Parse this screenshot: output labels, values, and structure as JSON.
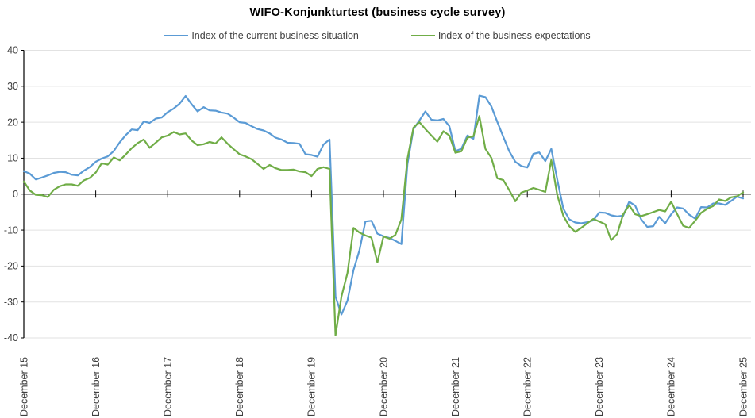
{
  "title": "WIFO-Konjunkturtest (business cycle survey)",
  "legend": {
    "current": "Index of the current business situation",
    "expectations": "Index of the business expectations"
  },
  "colors": {
    "current_line": "#5b9bd5",
    "expectations_line": "#70ad47",
    "grid": "#e2e2e2",
    "axis": "#000000",
    "tick_text": "#3f3f3f"
  },
  "chart_data": {
    "type": "line",
    "title": "WIFO-Konjunkturtest (business cycle survey)",
    "x_unit": "month",
    "x_start": "December 2015",
    "x_end": "December 2025",
    "x_tick_labels": [
      "December 15",
      "December 16",
      "December 17",
      "December 18",
      "December 19",
      "December 20",
      "December 21",
      "December 22",
      "December 23",
      "December 24",
      "December 25"
    ],
    "x_ticks_every_months": 12,
    "ylim": [
      -40,
      40
    ],
    "y_ticks": [
      40,
      30,
      20,
      10,
      0,
      -10,
      -20,
      -30,
      -40
    ],
    "grid": "horizontal",
    "legend_position": "top",
    "series": [
      {
        "name": "Index of the current business situation",
        "color": "#5b9bd5",
        "values": [
          6.4,
          5.7,
          4.1,
          4.6,
          5.2,
          5.9,
          6.2,
          6.1,
          5.4,
          5.2,
          6.5,
          7.5,
          9.0,
          9.9,
          10.5,
          12.0,
          14.4,
          16.4,
          18.0,
          17.8,
          20.2,
          19.8,
          21.0,
          21.3,
          22.8,
          23.8,
          25.2,
          27.3,
          25.0,
          23.0,
          24.2,
          23.3,
          23.2,
          22.7,
          22.4,
          21.3,
          20.0,
          19.8,
          18.9,
          18.1,
          17.7,
          16.9,
          15.7,
          15.2,
          14.3,
          14.2,
          14.0,
          11.1,
          10.9,
          10.4,
          13.8,
          15.2,
          -28.5,
          -33.5,
          -29.6,
          -21.1,
          -15.6,
          -7.6,
          -7.4,
          -11.0,
          -11.7,
          -12.2,
          -13.0,
          -13.9,
          8.3,
          18.1,
          20.5,
          23.0,
          20.7,
          20.5,
          20.9,
          18.9,
          12.0,
          12.6,
          16.3,
          15.4,
          27.4,
          27.0,
          24.4,
          20.1,
          15.9,
          11.9,
          9.0,
          7.8,
          7.4,
          11.2,
          11.6,
          9.2,
          12.6,
          4.1,
          -4.0,
          -7.0,
          -7.9,
          -8.1,
          -7.8,
          -7.3,
          -5.1,
          -5.2,
          -5.9,
          -6.2,
          -6.0,
          -2.1,
          -3.2,
          -7.0,
          -9.1,
          -8.9,
          -6.3,
          -8.1,
          -5.6,
          -3.7,
          -4.0,
          -5.7,
          -6.8,
          -3.6,
          -3.7,
          -2.6,
          -2.6,
          -3.0,
          -1.9,
          -0.7,
          -1.2
        ]
      },
      {
        "name": "Index of the business expectations",
        "color": "#70ad47",
        "values": [
          3.5,
          1.0,
          -0.2,
          -0.3,
          -0.8,
          1.2,
          2.2,
          2.7,
          2.7,
          2.3,
          3.8,
          4.5,
          6.0,
          8.6,
          8.2,
          10.2,
          9.4,
          11.0,
          12.8,
          14.2,
          15.2,
          12.9,
          14.3,
          15.8,
          16.3,
          17.3,
          16.6,
          16.9,
          14.9,
          13.6,
          13.9,
          14.5,
          14.1,
          15.8,
          14.0,
          12.5,
          11.1,
          10.5,
          9.7,
          8.4,
          7.0,
          8.1,
          7.2,
          6.7,
          6.7,
          6.8,
          6.3,
          6.1,
          5.0,
          7.0,
          7.5,
          7.0,
          -39.3,
          -28.5,
          -21.9,
          -9.4,
          -10.7,
          -11.5,
          -12.1,
          -19.0,
          -11.8,
          -12.4,
          -11.3,
          -7.0,
          9.8,
          18.5,
          20.0,
          18.1,
          16.3,
          14.6,
          17.5,
          16.3,
          11.5,
          11.9,
          15.7,
          16.1,
          21.7,
          12.6,
          10.1,
          4.4,
          3.9,
          1.1,
          -2.0,
          0.4,
          1.0,
          1.7,
          1.2,
          0.6,
          9.5,
          -0.2,
          -6.0,
          -8.9,
          -10.5,
          -9.4,
          -8.1,
          -6.9,
          -7.6,
          -8.4,
          -12.8,
          -11.1,
          -5.6,
          -3.1,
          -5.6,
          -6.1,
          -5.6,
          -5.0,
          -4.4,
          -4.8,
          -2.1,
          -5.5,
          -8.8,
          -9.4,
          -7.4,
          -5.2,
          -4.1,
          -3.3,
          -1.5,
          -1.9,
          -0.9,
          -0.6,
          0.5
        ]
      }
    ]
  }
}
